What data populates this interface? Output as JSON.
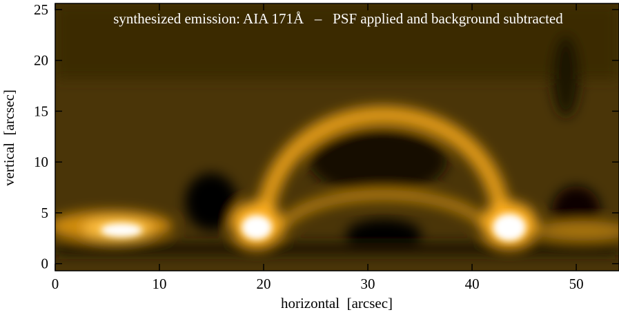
{
  "chart_data": {
    "type": "image",
    "title": "synthesized emission: AIA 171Å   –   PSF applied and background subtracted",
    "xlabel": "horizontal  [arcsec]",
    "ylabel": "vertical  [arcsec]",
    "xlim": [
      0,
      54.1
    ],
    "xticks": [
      0,
      10,
      20,
      30,
      40,
      50
    ],
    "ylim": [
      -0.7,
      25.6
    ],
    "yticks": [
      0,
      5,
      10,
      15,
      20,
      25
    ]
  }
}
